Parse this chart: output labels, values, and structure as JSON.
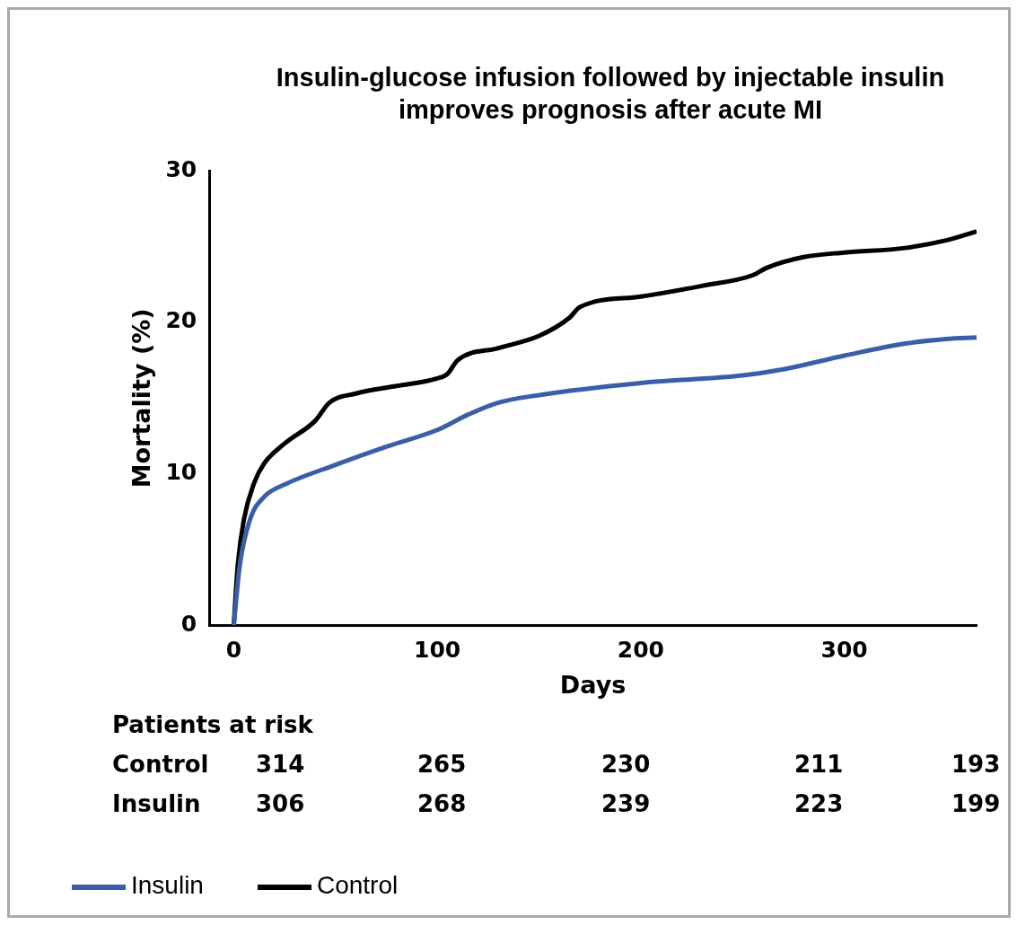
{
  "chart_data": {
    "type": "line",
    "title": "Insulin-glucose infusion followed by injectable insulin improves prognosis after acute MI",
    "xlabel": "Days",
    "ylabel": "Mortality (%)",
    "xlim": [
      -12,
      365
    ],
    "xticks": [
      0,
      100,
      200,
      300
    ],
    "ylim": [
      0,
      30
    ],
    "yticks": [
      0,
      10,
      20,
      30
    ],
    "grid": false,
    "legend": "bottom",
    "marker": "none",
    "line_style": "solid",
    "series": [
      {
        "name": "Insulin",
        "color": "#3a5fa8",
        "x": [
          0,
          3,
          8,
          15,
          25,
          50,
          75,
          100,
          115,
          130,
          150,
          200,
          250,
          270,
          300,
          330,
          350,
          365
        ],
        "values": [
          0,
          4,
          7,
          8.5,
          9.3,
          10.6,
          11.8,
          12.9,
          13.9,
          14.7,
          15.2,
          16,
          16.5,
          16.9,
          17.8,
          18.6,
          18.9,
          19
        ]
      },
      {
        "name": "Control",
        "color": "#000000",
        "x": [
          0,
          2,
          5,
          10,
          15,
          25,
          40,
          47,
          60,
          80,
          100,
          105,
          110,
          130,
          150,
          165,
          170,
          200,
          230,
          255,
          262,
          280,
          300,
          330,
          350,
          365
        ],
        "values": [
          0,
          4,
          7,
          9.4,
          10.7,
          12,
          13.5,
          14.7,
          15.3,
          15.8,
          16.3,
          16.6,
          17.5,
          18.3,
          19.1,
          20.3,
          21,
          21.7,
          22.4,
          23.1,
          23.6,
          24.3,
          24.6,
          24.9,
          25.4,
          26
        ]
      }
    ],
    "annotations": [
      "Patients at risk",
      "Control",
      "314",
      "265",
      "230",
      "211",
      "193",
      "Insulin",
      "306",
      "268",
      "239",
      "223",
      "199"
    ]
  }
}
